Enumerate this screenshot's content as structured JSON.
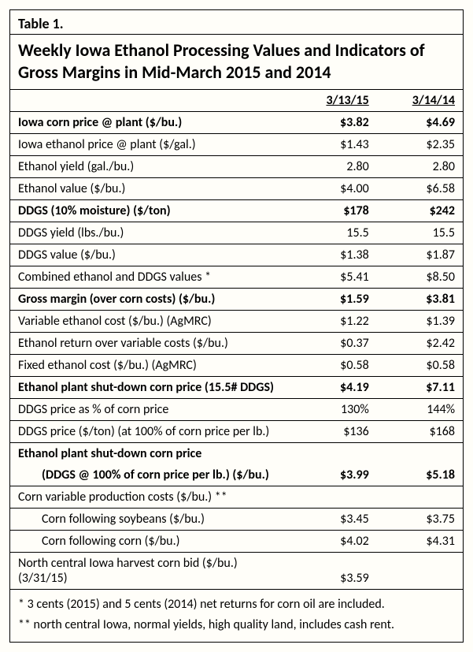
{
  "table": {
    "label": "Table 1.",
    "title": "Weekly Iowa Ethanol Processing Values and Indicators of Gross Margins in Mid-March 2015 and 2014",
    "columns": {
      "date1": "3/13/15",
      "date2": "3/14/14"
    },
    "rows": [
      {
        "label": "Iowa corn price @ plant ($/bu.)",
        "v1": "$3.82",
        "v2": "$4.69",
        "bold": true
      },
      {
        "label": "Iowa ethanol price @ plant ($/gal.)",
        "v1": "$1.43",
        "v2": "$2.35"
      },
      {
        "label": "Ethanol yield (gal./bu.)",
        "v1": "2.80",
        "v2": "2.80"
      },
      {
        "label": "Ethanol value ($/bu.)",
        "v1": "$4.00",
        "v2": "$6.58"
      },
      {
        "label": "DDGS (10% moisture) ($/ton)",
        "v1": "$178",
        "v2": "$242",
        "bold": true
      },
      {
        "label": "DDGS yield (lbs./bu.)",
        "v1": "15.5",
        "v2": "15.5"
      },
      {
        "label": "DDGS value ($/bu.)",
        "v1": "$1.38",
        "v2": "$1.87"
      },
      {
        "label": "Combined ethanol and DDGS values *",
        "v1": "$5.41",
        "v2": "$8.50"
      },
      {
        "label": "Gross margin (over corn costs) ($/bu.)",
        "v1": "$1.59",
        "v2": "$3.81",
        "bold": true
      },
      {
        "label": "Variable ethanol cost ($/bu.) (AgMRC)",
        "v1": "$1.22",
        "v2": "$1.39"
      },
      {
        "label": "Ethanol return over variable costs ($/bu.)",
        "v1": "$0.37",
        "v2": "$2.42"
      },
      {
        "label": "Fixed ethanol cost ($/bu.) (AgMRC)",
        "v1": "$0.58",
        "v2": "$0.58"
      },
      {
        "label": "Ethanol plant shut-down corn price (15.5# DDGS)",
        "v1": "$4.19",
        "v2": "$7.11",
        "bold": true
      },
      {
        "label": "DDGS price as % of corn price",
        "v1": "130%",
        "v2": "144%"
      },
      {
        "label": "DDGS price ($/ton) (at 100% of corn price per lb.)",
        "v1": "$136",
        "v2": "$168"
      },
      {
        "label": "Ethanol plant shut-down corn price",
        "v1": "",
        "v2": "",
        "bold": true,
        "noborder": true
      },
      {
        "label": "(DDGS @ 100% of corn price per lb.) ($/bu.)",
        "v1": "$3.99",
        "v2": "$5.18",
        "bold": true,
        "indent": true
      },
      {
        "label": "Corn variable production costs ($/bu.) **",
        "v1": "",
        "v2": ""
      },
      {
        "label": "Corn following soybeans ($/bu.)",
        "v1": "$3.45",
        "v2": "$3.75",
        "indent": true
      },
      {
        "label": "Corn following corn ($/bu.)",
        "v1": "$4.02",
        "v2": "$4.31",
        "indent": true
      },
      {
        "label": "North central Iowa harvest corn bid ($/bu.) (3/31/15)",
        "v1": "$3.59",
        "v2": ""
      }
    ],
    "footnotes": [
      "*  3 cents (2015) and 5 cents (2014) net returns for corn oil are included.",
      "**  north central Iowa, normal yields, high quality land, includes cash rent."
    ]
  },
  "style": {
    "background_color": "#fffef9",
    "border_color": "#000000",
    "font_family": "Calibri",
    "title_fontsize_pt": 16,
    "body_fontsize_pt": 12
  }
}
